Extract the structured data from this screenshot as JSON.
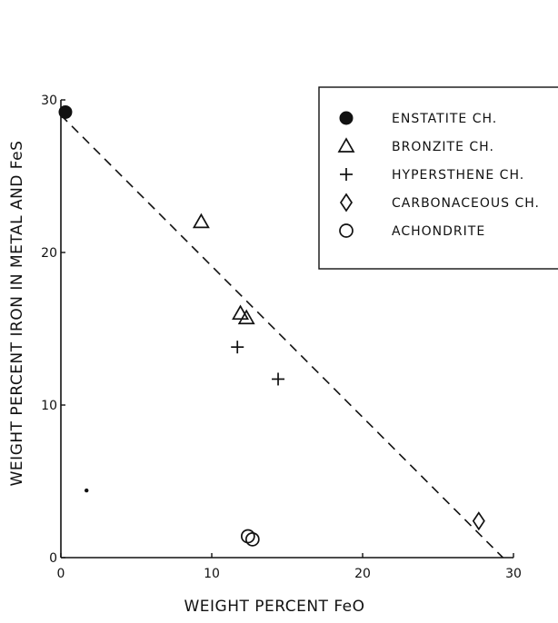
{
  "chart_data": {
    "type": "scatter",
    "xlabel": "WEIGHT PERCENT FeO",
    "ylabel": "WEIGHT PERCENT IRON IN METAL AND FeS",
    "xlim": [
      0,
      30
    ],
    "ylim": [
      0,
      30
    ],
    "x_ticks": [
      "0",
      "10",
      "20",
      "30"
    ],
    "y_ticks": [
      "0",
      "10",
      "20",
      "30"
    ],
    "grid": false,
    "legend": "top-right",
    "series": [
      {
        "name": "ENSTATITE CH.",
        "marker": "filled-circle",
        "points": [
          [
            0.3,
            29.2
          ]
        ]
      },
      {
        "name": "BRONZITE CH.",
        "marker": "triangle",
        "points": [
          [
            9.3,
            22.0
          ],
          [
            11.9,
            16.0
          ],
          [
            12.3,
            15.7
          ]
        ]
      },
      {
        "name": "HYPERSTHENE CH.",
        "marker": "plus",
        "points": [
          [
            11.7,
            13.8
          ],
          [
            14.4,
            11.7
          ]
        ]
      },
      {
        "name": "CARBONACEOUS CH.",
        "marker": "diamond",
        "points": [
          [
            27.7,
            2.4
          ]
        ]
      },
      {
        "name": "ACHONDRITE",
        "marker": "open-circle",
        "points": [
          [
            12.4,
            1.4
          ],
          [
            12.7,
            1.2
          ]
        ]
      }
    ],
    "stray_dot": [
      1.7,
      4.4
    ],
    "reference_line": {
      "style": "dashed",
      "from": [
        0,
        29.0
      ],
      "to": [
        29.3,
        0
      ]
    }
  }
}
